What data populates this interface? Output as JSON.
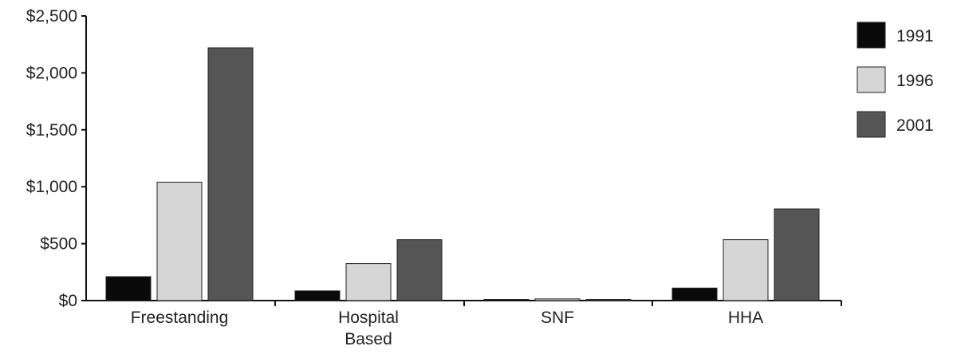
{
  "chart_data": {
    "type": "bar",
    "categories": [
      {
        "label": "Freestanding",
        "lines": [
          "Freestanding"
        ]
      },
      {
        "label": "Hospital Based",
        "lines": [
          "Hospital",
          "Based"
        ]
      },
      {
        "label": "SNF",
        "lines": [
          "SNF"
        ]
      },
      {
        "label": "HHA",
        "lines": [
          "HHA"
        ]
      }
    ],
    "series": [
      {
        "name": "1991",
        "color": "#0a0a0a",
        "values": [
          210,
          85,
          3,
          110
        ]
      },
      {
        "name": "1996",
        "color": "#d6d6d6",
        "values": [
          1040,
          325,
          15,
          535
        ]
      },
      {
        "name": "2001",
        "color": "#555555",
        "values": [
          2220,
          535,
          10,
          805
        ]
      }
    ],
    "ylim": [
      0,
      2500
    ],
    "yticks": [
      0,
      500,
      1000,
      1500,
      2000,
      2500
    ],
    "ytick_labels": [
      "$0",
      "$500",
      "$1,000",
      "$1,500",
      "$2,000",
      "$2,500"
    ],
    "title": "",
    "xlabel": "",
    "ylabel": "",
    "legend_position": "top-right",
    "grid": false
  }
}
